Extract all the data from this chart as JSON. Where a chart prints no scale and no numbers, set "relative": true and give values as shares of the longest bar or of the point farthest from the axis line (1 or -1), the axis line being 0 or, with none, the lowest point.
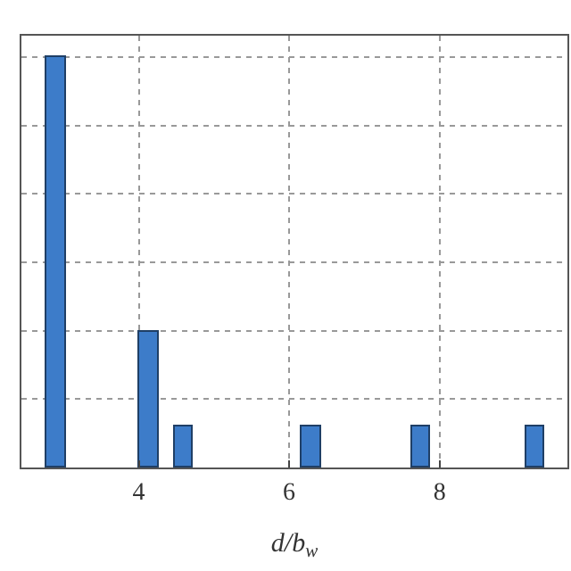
{
  "chart_data": {
    "type": "bar",
    "relative": true,
    "xlabel": "d/b$_{w}$",
    "x": [
      2.9,
      4.13,
      4.6,
      6.3,
      7.75,
      9.27
    ],
    "values": [
      1,
      0.33,
      0.1,
      0.1,
      0.1,
      0.1
    ],
    "color": "#3d7cc9",
    "xlim": [
      2.44,
      9.7
    ],
    "xticks": [
      4,
      6,
      8
    ],
    "grid": true
  }
}
